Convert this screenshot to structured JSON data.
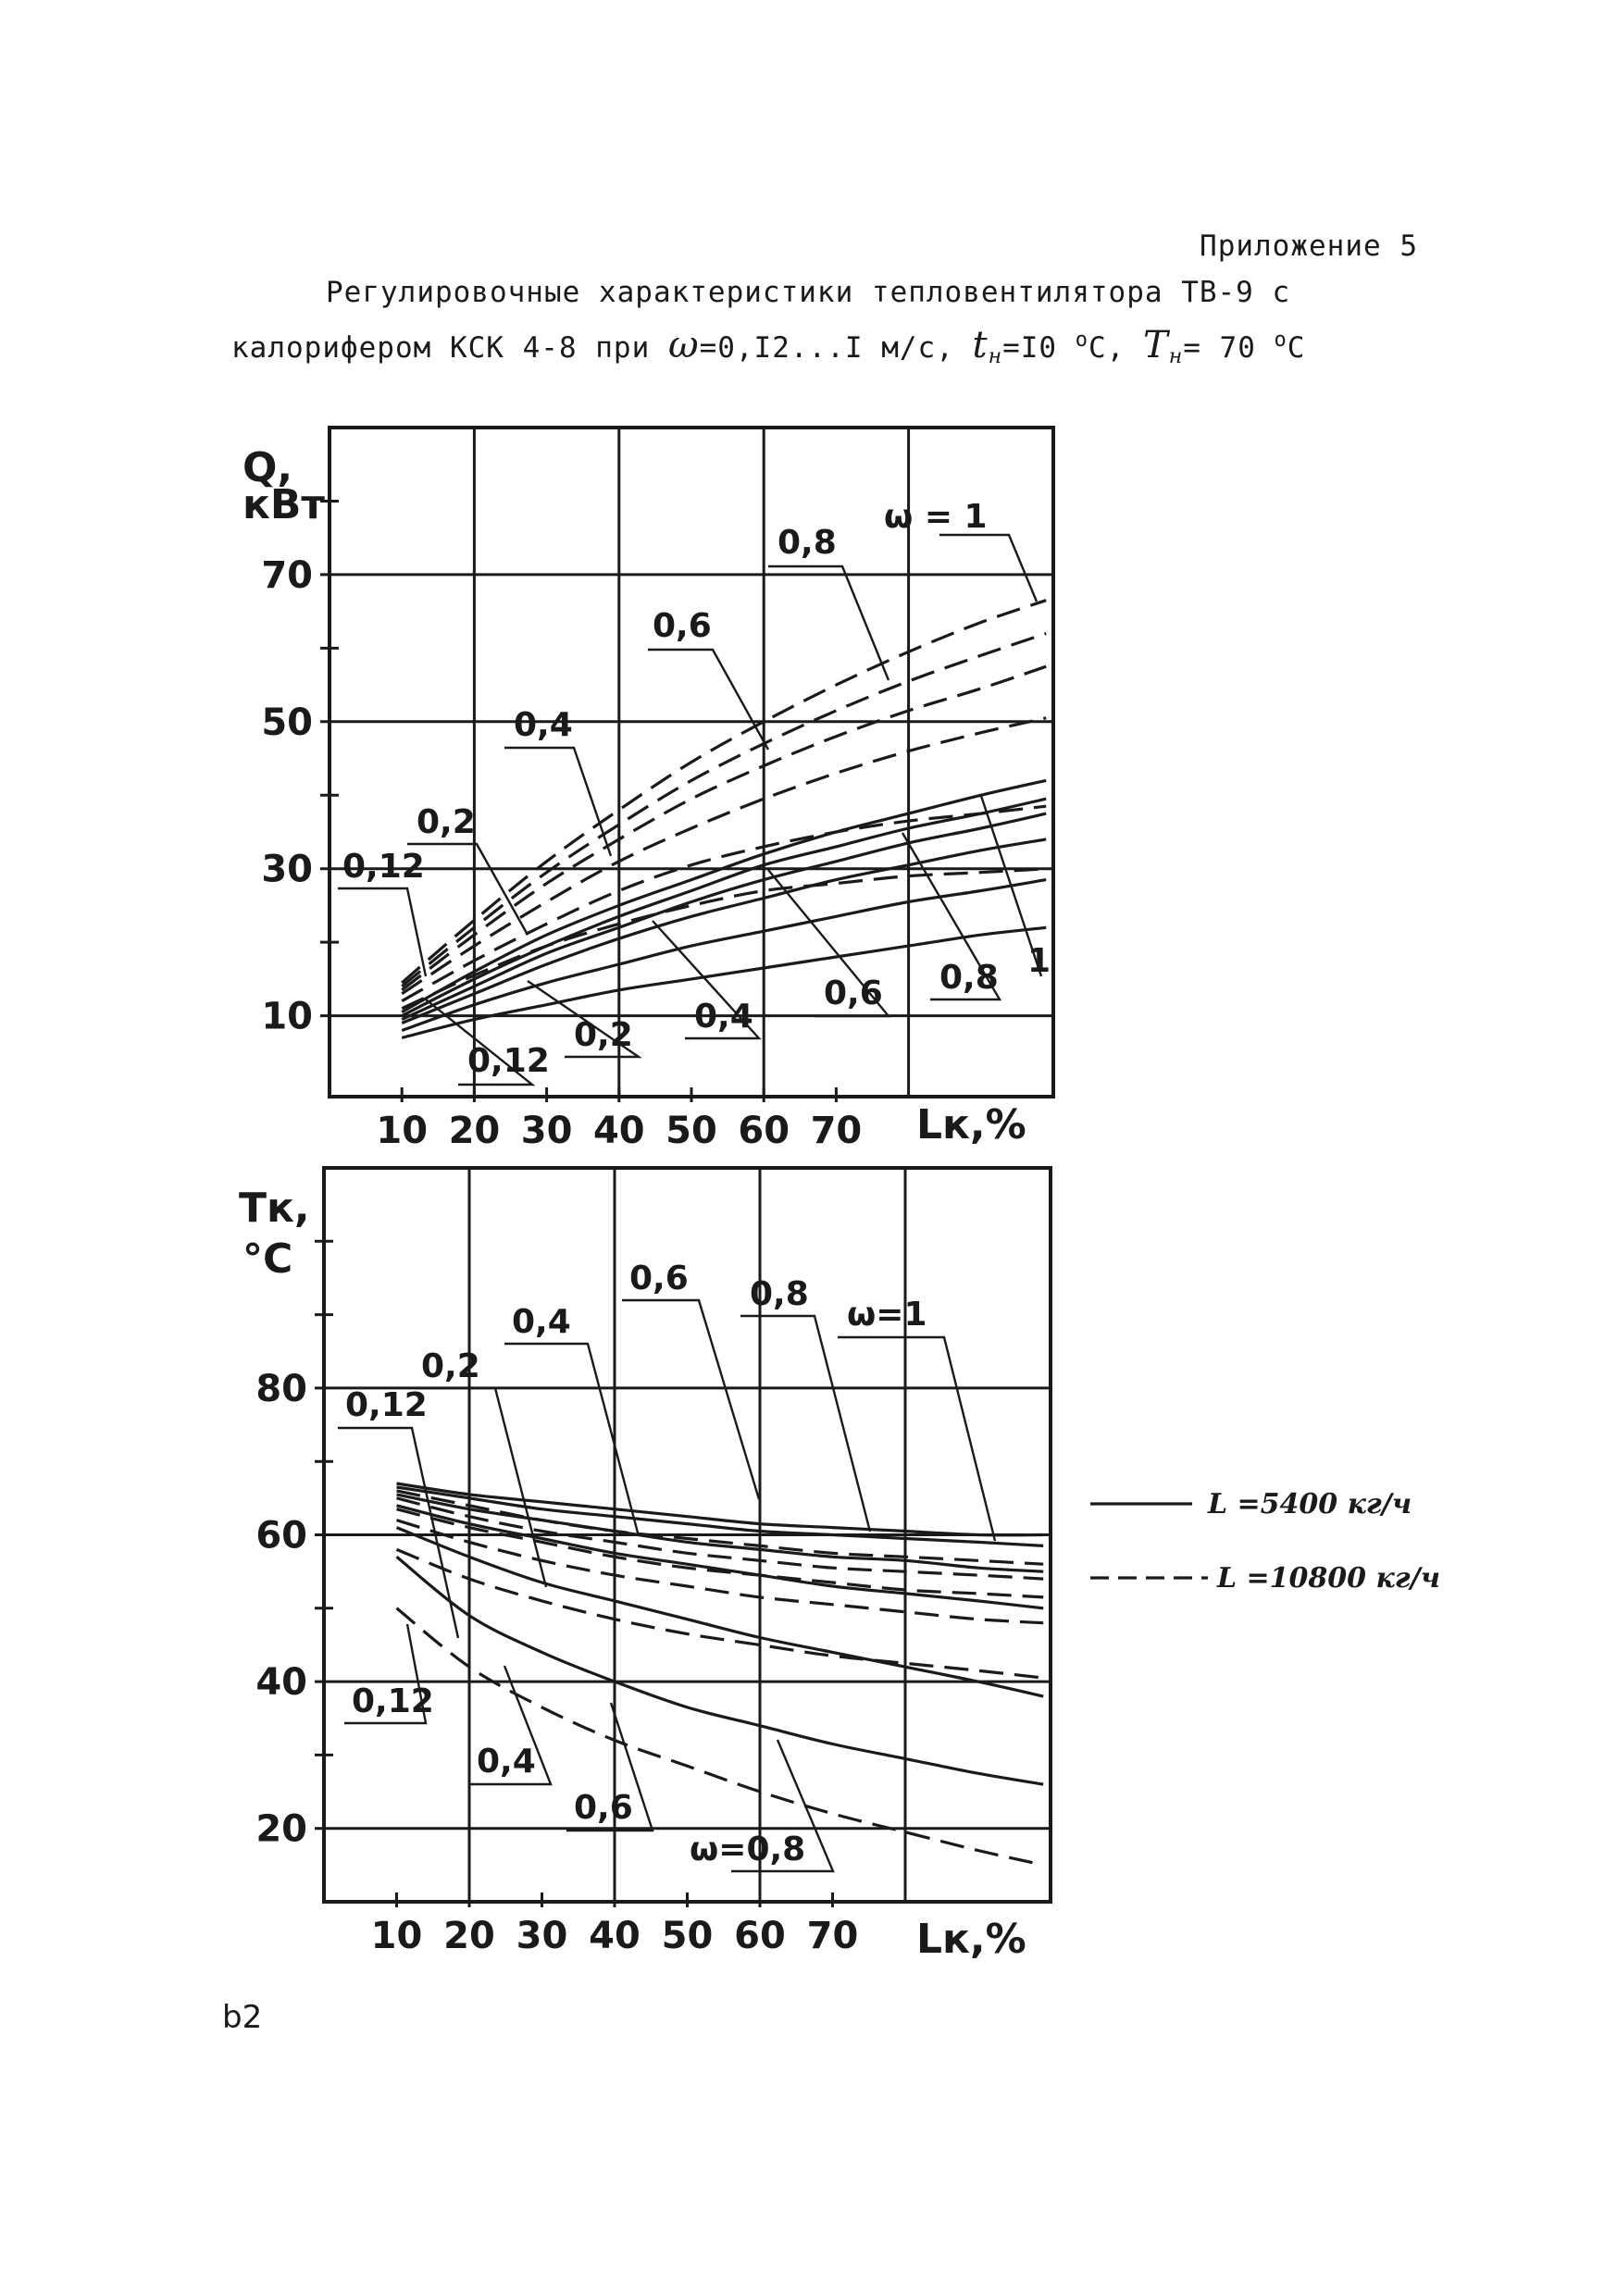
{
  "header": {
    "appendix": "Приложение 5",
    "title_line1": "Регулировочные характеристики тепловентилятора ТВ-9 с",
    "title_line2_a": "калорифером КСК 4-8 при",
    "title_line2_b": "=0,I2...I м/с,",
    "title_line2_c": "=I0",
    "title_line2_d": "C,",
    "title_line2_e": "= 70",
    "title_line2_f": "C",
    "omega_symbol": "ω",
    "t_symbol": "t",
    "t_sub": "н",
    "T_symbol": "T",
    "T_sub": "н",
    "deg": "o"
  },
  "legend": {
    "solid_label": "L =5400 кг/ч",
    "dashed_label": "L =10800 кг/ч"
  },
  "page_number": "b2",
  "chart_data": [
    {
      "id": "heat-output",
      "type": "line",
      "ylabel": "Q, кВт",
      "xlabel": "Lк,%",
      "y_tick_labels": [
        "10",
        "30",
        "50",
        "70"
      ],
      "x_tick_labels": [
        "10",
        "20",
        "30",
        "40",
        "50",
        "60",
        "70"
      ],
      "xlim": [
        0,
        100
      ],
      "ylim": [
        -1,
        90
      ],
      "grid": true,
      "x": [
        10,
        20,
        30,
        40,
        50,
        60,
        70,
        80,
        90,
        99
      ],
      "series": [
        {
          "name": "ω=0,12 L=5400",
          "style": "solid",
          "values": [
            7,
            9.5,
            11.5,
            13.5,
            15,
            16.5,
            18,
            19.5,
            21,
            22
          ]
        },
        {
          "name": "ω=0,2 L=5400",
          "style": "solid",
          "values": [
            8,
            11.5,
            14.5,
            17,
            19.5,
            21.5,
            23.5,
            25.5,
            27,
            28.5
          ]
        },
        {
          "name": "ω=0,4 L=5400",
          "style": "solid",
          "values": [
            9,
            13,
            17,
            20.5,
            23.5,
            26,
            28.5,
            30.5,
            32.5,
            34
          ]
        },
        {
          "name": "ω=0,6 L=5400",
          "style": "solid",
          "values": [
            9.5,
            14,
            18.5,
            22,
            25.5,
            28.5,
            31,
            33.5,
            35.5,
            37.5
          ]
        },
        {
          "name": "ω=0,8 L=5400",
          "style": "solid",
          "values": [
            10,
            15,
            19.5,
            23.5,
            27,
            30.5,
            33,
            35.5,
            37.5,
            39.5
          ]
        },
        {
          "name": "ω=1 L=5400",
          "style": "solid",
          "values": [
            10.5,
            16,
            21,
            25,
            28.5,
            32,
            35,
            37.5,
            40,
            42
          ]
        },
        {
          "name": "ω=0,12 L=10800",
          "style": "dash",
          "values": [
            11,
            15.5,
            19.5,
            22.5,
            25,
            27,
            28,
            29,
            29.5,
            30
          ]
        },
        {
          "name": "ω=0,2 L=10800",
          "style": "dash",
          "values": [
            12,
            17.5,
            22.5,
            27,
            30.5,
            33,
            35,
            36.5,
            37.5,
            38.5
          ]
        },
        {
          "name": "ω=0,4 L=10800",
          "style": "dash",
          "values": [
            13,
            19.5,
            25.5,
            31,
            35.5,
            39.5,
            43,
            46,
            48.5,
            50.5
          ]
        },
        {
          "name": "ω=0,6 L=10800",
          "style": "dash",
          "values": [
            13.5,
            21,
            28,
            34,
            39.5,
            44,
            48,
            51.5,
            54.5,
            57.5
          ]
        },
        {
          "name": "ω=0,8 L=10800",
          "style": "dash",
          "values": [
            14,
            22,
            29.5,
            36,
            42,
            47,
            51.5,
            55.5,
            59,
            62
          ]
        },
        {
          "name": "ω=1 L=10800",
          "style": "dash",
          "values": [
            14.5,
            23,
            31,
            38,
            44.5,
            50,
            55,
            59.5,
            63.5,
            66.5
          ]
        }
      ],
      "curve_labels": [
        "ω = 1",
        "0,8",
        "0,8",
        "0,4",
        "0,2",
        "0,12",
        "0,12",
        "0,2",
        "0,4",
        "0,6",
        "0,8",
        "1"
      ]
    },
    {
      "id": "air-temperature",
      "type": "line",
      "ylabel": "Tк, °C",
      "xlabel": "Lк,%",
      "y_tick_labels": [
        "20",
        "40",
        "60",
        "80"
      ],
      "x_tick_labels": [
        "10",
        "20",
        "30",
        "40",
        "50",
        "60",
        "70"
      ],
      "xlim": [
        0,
        100
      ],
      "ylim": [
        10,
        110
      ],
      "grid": true,
      "x": [
        10,
        20,
        30,
        40,
        50,
        60,
        70,
        80,
        90,
        99
      ],
      "series": [
        {
          "name": "ω=0,12 L=5400",
          "style": "solid",
          "values": [
            57,
            49,
            44,
            40,
            36.5,
            34,
            31.5,
            29.5,
            27.5,
            26
          ]
        },
        {
          "name": "ω=0,2 L=5400",
          "style": "solid",
          "values": [
            61,
            57,
            53.5,
            51,
            48.5,
            46,
            44,
            42,
            40,
            38
          ]
        },
        {
          "name": "ω=0,4 L=5400",
          "style": "solid",
          "values": [
            64,
            61.5,
            59.5,
            57.5,
            56,
            54.5,
            53,
            52,
            51,
            50
          ]
        },
        {
          "name": "ω=0,6 L=5400",
          "style": "solid",
          "values": [
            65.5,
            63.5,
            62,
            60.5,
            59,
            58,
            57,
            56.5,
            55.5,
            55
          ]
        },
        {
          "name": "ω=0,8 L=5400",
          "style": "solid",
          "values": [
            66.5,
            65,
            63.5,
            62.5,
            61.5,
            60.5,
            60,
            59.5,
            59,
            58.5
          ]
        },
        {
          "name": "ω=1 L=5400",
          "style": "solid",
          "values": [
            67,
            65.5,
            64.5,
            63.5,
            62.5,
            61.5,
            61,
            60.5,
            60,
            60
          ]
        },
        {
          "name": "ω=0,12 L=10800",
          "style": "dash",
          "values": [
            50,
            42,
            36.5,
            32,
            28.5,
            25,
            22,
            19.5,
            17,
            15
          ]
        },
        {
          "name": "ω=0,2 L=10800",
          "style": "dash",
          "values": [
            58,
            54,
            51,
            48.5,
            46.5,
            45,
            43.5,
            42.5,
            41.5,
            40.5
          ]
        },
        {
          "name": "ω=0,4 L=10800",
          "style": "dash",
          "values": [
            62,
            59,
            56.5,
            54.5,
            53,
            51.5,
            50.5,
            49.5,
            48.5,
            48
          ]
        },
        {
          "name": "ω=0,6 L=10800",
          "style": "dash",
          "values": [
            63.5,
            61,
            59,
            57,
            55.5,
            54.5,
            53.5,
            52.5,
            52,
            51.5
          ]
        },
        {
          "name": "ω=0,8 L=10800",
          "style": "dash",
          "values": [
            65,
            62.5,
            60.5,
            59,
            57.5,
            56.5,
            55.5,
            55,
            54.5,
            54
          ]
        },
        {
          "name": "ω=1 L=10800",
          "style": "dash",
          "values": [
            66,
            64,
            62,
            60.5,
            59.5,
            58.5,
            57.5,
            57,
            56.5,
            56
          ]
        }
      ],
      "curve_labels": [
        "0,6",
        "0,8",
        "ω=1",
        "0,4",
        "0,2",
        "0,12",
        "0,12",
        "0,4",
        "0,6",
        "ω=0,8"
      ]
    }
  ]
}
